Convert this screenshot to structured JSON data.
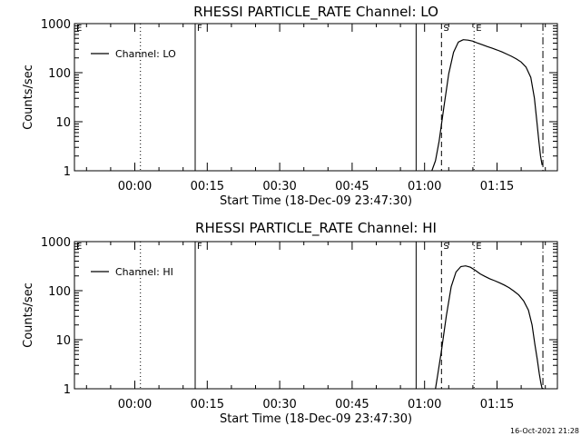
{
  "footer": {
    "timestamp": "16-Oct-2021 21:28"
  },
  "chart_data": [
    {
      "type": "line",
      "title": "RHESSI PARTICLE_RATE Channel: LO",
      "xlabel": "Start Time (18-Dec-09 23:47:30)",
      "ylabel": "Counts/sec",
      "y_scale": "log",
      "ylim": [
        1,
        1000
      ],
      "yticks": [
        {
          "value": 1,
          "label": "1"
        },
        {
          "value": 10,
          "label": "10"
        },
        {
          "value": 100,
          "label": "100"
        },
        {
          "value": 1000,
          "label": "1000"
        }
      ],
      "xlim": [
        "23:47:30",
        "01:27:30"
      ],
      "xticks": [
        {
          "time": "00:00",
          "label": "00:00"
        },
        {
          "time": "00:15",
          "label": "00:15"
        },
        {
          "time": "00:30",
          "label": "00:30"
        },
        {
          "time": "00:45",
          "label": "00:45"
        },
        {
          "time": "01:00",
          "label": "01:00"
        },
        {
          "time": "01:15",
          "label": "01:15"
        }
      ],
      "legend": {
        "label": "Channel: LO",
        "placement": "top-left"
      },
      "markers": [
        {
          "time": "23:47:30",
          "label": "E",
          "style": "solid"
        },
        {
          "time": "00:01:10",
          "label": "",
          "style": "dotted"
        },
        {
          "time": "00:12:30",
          "label": "F",
          "style": "solid"
        },
        {
          "time": "00:58:15",
          "label": "",
          "style": "solid"
        },
        {
          "time": "01:03:30",
          "label": "S",
          "style": "dashed"
        },
        {
          "time": "01:10:15",
          "label": "E",
          "style": "dotted"
        },
        {
          "time": "01:24:30",
          "label": "",
          "style": "dash-dot"
        }
      ],
      "series": [
        {
          "x": [
            "01:01:30",
            "01:02:15",
            "01:03:00",
            "01:04:00",
            "01:05:00",
            "01:06:00",
            "01:07:00",
            "01:08:00",
            "01:09:00",
            "01:10:00",
            "01:11:00",
            "01:12:00",
            "01:13:00",
            "01:14:00",
            "01:15:00",
            "01:16:00",
            "01:17:00",
            "01:18:00",
            "01:19:00",
            "01:20:00",
            "01:21:00",
            "01:22:00",
            "01:22:45",
            "01:23:15",
            "01:23:40",
            "01:24:00",
            "01:24:20"
          ],
          "y": [
            1,
            1.6,
            4,
            20,
            95,
            260,
            420,
            470,
            460,
            440,
            400,
            370,
            340,
            315,
            290,
            265,
            240,
            215,
            190,
            165,
            130,
            80,
            30,
            10,
            4,
            2,
            1.3
          ]
        }
      ]
    },
    {
      "type": "line",
      "title": "RHESSI PARTICLE_RATE Channel: HI",
      "xlabel": "Start Time (18-Dec-09 23:47:30)",
      "ylabel": "Counts/sec",
      "y_scale": "log",
      "ylim": [
        1,
        1000
      ],
      "yticks": [
        {
          "value": 1,
          "label": "1"
        },
        {
          "value": 10,
          "label": "10"
        },
        {
          "value": 100,
          "label": "100"
        },
        {
          "value": 1000,
          "label": "1000"
        }
      ],
      "xlim": [
        "23:47:30",
        "01:27:30"
      ],
      "xticks": [
        {
          "time": "00:00",
          "label": "00:00"
        },
        {
          "time": "00:15",
          "label": "00:15"
        },
        {
          "time": "00:30",
          "label": "00:30"
        },
        {
          "time": "00:45",
          "label": "00:45"
        },
        {
          "time": "01:00",
          "label": "01:00"
        },
        {
          "time": "01:15",
          "label": "01:15"
        }
      ],
      "legend": {
        "label": "Channel: HI",
        "placement": "top-left"
      },
      "markers": [
        {
          "time": "23:47:30",
          "label": "E",
          "style": "solid"
        },
        {
          "time": "00:01:10",
          "label": "",
          "style": "dotted"
        },
        {
          "time": "00:12:30",
          "label": "F",
          "style": "solid"
        },
        {
          "time": "00:58:15",
          "label": "",
          "style": "solid"
        },
        {
          "time": "01:03:30",
          "label": "S",
          "style": "dashed"
        },
        {
          "time": "01:10:15",
          "label": "E",
          "style": "dotted"
        },
        {
          "time": "01:24:30",
          "label": "",
          "style": "dash-dot"
        }
      ],
      "series": [
        {
          "x": [
            "01:02:15",
            "01:02:45",
            "01:03:30",
            "01:04:30",
            "01:05:30",
            "01:06:30",
            "01:07:30",
            "01:08:30",
            "01:09:30",
            "01:10:30",
            "01:11:30",
            "01:12:30",
            "01:13:30",
            "01:14:30",
            "01:15:30",
            "01:16:30",
            "01:17:30",
            "01:18:30",
            "01:19:30",
            "01:20:30",
            "01:21:30",
            "01:22:15",
            "01:22:50",
            "01:23:20",
            "01:23:45",
            "01:24:05",
            "01:24:20"
          ],
          "y": [
            1,
            2,
            6,
            30,
            120,
            240,
            310,
            320,
            300,
            260,
            220,
            195,
            175,
            160,
            145,
            130,
            115,
            98,
            82,
            62,
            40,
            20,
            8,
            4,
            2,
            1.3,
            1
          ]
        }
      ]
    }
  ]
}
